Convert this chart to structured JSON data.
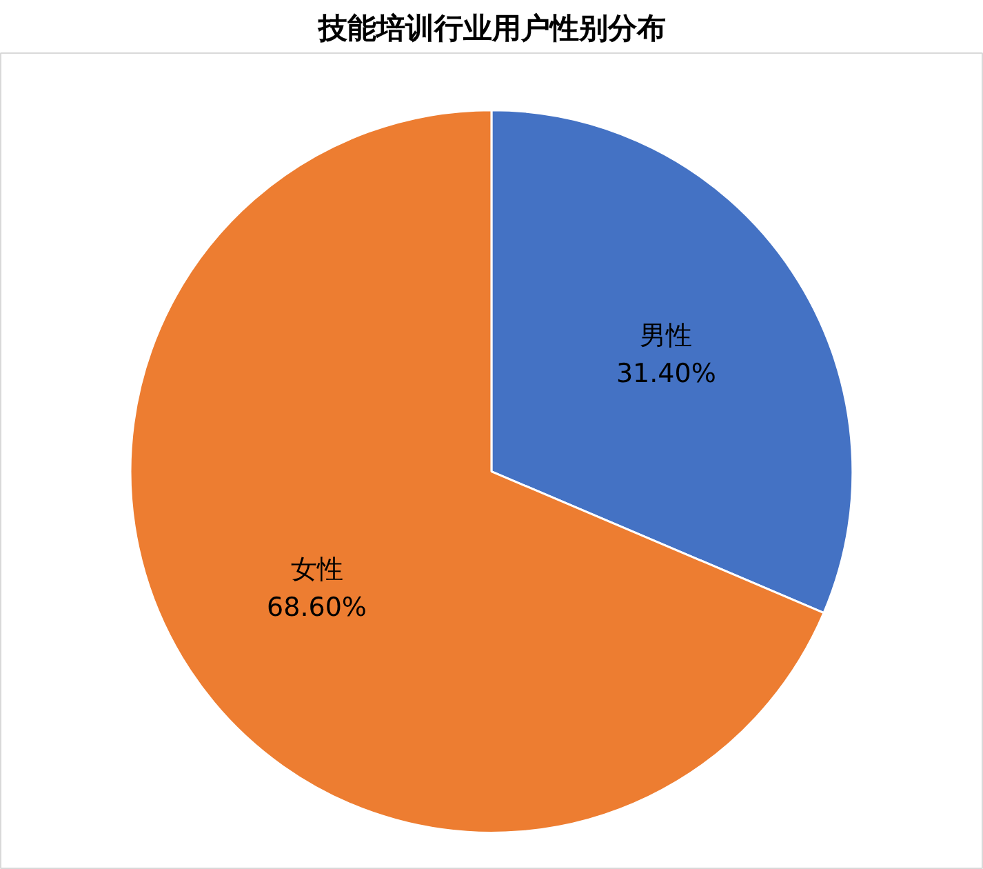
{
  "chart_data": {
    "type": "pie",
    "title": "技能培训行业用户性别分布",
    "categories": [
      "男性",
      "女性"
    ],
    "values": [
      31.4,
      68.6
    ],
    "colors": [
      "#4472c4",
      "#ed7d31"
    ],
    "value_labels": [
      "31.40%",
      "68.60%"
    ],
    "legend": false
  }
}
